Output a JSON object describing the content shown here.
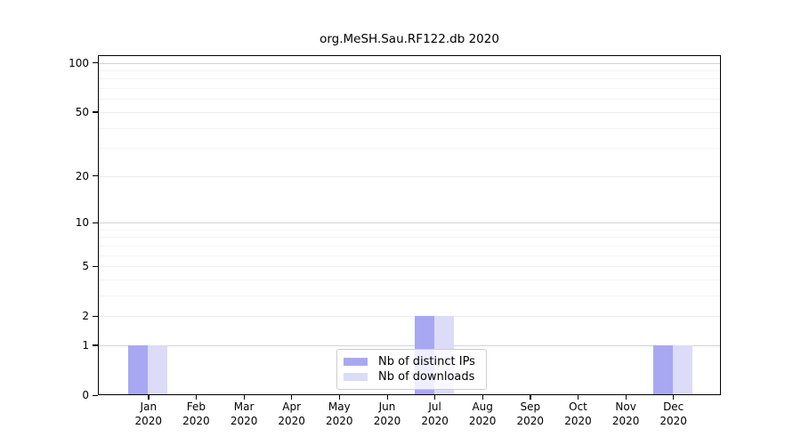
{
  "chart_data": {
    "type": "bar",
    "title": "org.MeSH.Sau.RF122.db 2020",
    "categories": [
      "Jan",
      "Feb",
      "Mar",
      "Apr",
      "May",
      "Jun",
      "Jul",
      "Aug",
      "Sep",
      "Oct",
      "Nov",
      "Dec"
    ],
    "category_year": "2020",
    "series": [
      {
        "name": "Nb of distinct IPs",
        "color": "#a8a8f2",
        "values": [
          1,
          0,
          0,
          0,
          0,
          0,
          2,
          0,
          0,
          0,
          0,
          1
        ]
      },
      {
        "name": "Nb of downloads",
        "color": "#dcdcf8",
        "values": [
          1,
          0,
          0,
          0,
          0,
          0,
          2,
          0,
          0,
          0,
          0,
          1
        ]
      }
    ],
    "yscale": "log1p",
    "ylim": [
      0,
      112
    ],
    "ytick_labels": [
      0,
      1,
      2,
      5,
      10,
      20,
      50,
      100
    ],
    "gridlines": {
      "major": [
        1,
        10,
        100
      ],
      "labeled": [
        2,
        5,
        20,
        50
      ],
      "minor": [
        3,
        4,
        6,
        7,
        8,
        9,
        30,
        40,
        60,
        70,
        80,
        90
      ],
      "major_color": "#d2d2da",
      "labeled_color": "#ececf1",
      "minor_color": "#f4f4f6"
    },
    "grid": "horizontal",
    "legend_position": "inside-bottom-center",
    "axis_color": "#000000",
    "background_color": "#ffffff"
  }
}
